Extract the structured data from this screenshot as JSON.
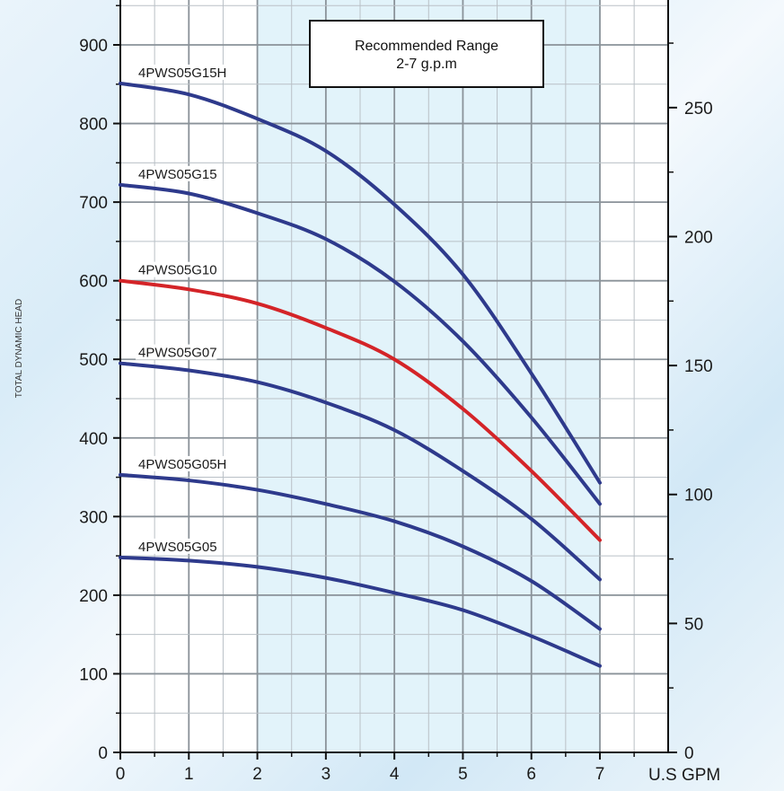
{
  "chart_data": {
    "type": "line",
    "title": "",
    "xlabel": "U.S GPM",
    "ylabel": "TOTAL DYNAMIC HEAD",
    "x_ticks": [
      "0",
      "1",
      "2",
      "3",
      "4",
      "5",
      "6",
      "7"
    ],
    "y_ticks_left": [
      "0",
      "100",
      "200",
      "300",
      "400",
      "500",
      "600",
      "700",
      "800",
      "900"
    ],
    "y_ticks_right": [
      "0",
      "50",
      "100",
      "150",
      "200",
      "250"
    ],
    "xlim": [
      0,
      8
    ],
    "ylim_left": [
      0,
      950
    ],
    "right_axis_factor": 0.3048,
    "recommended_range": [
      2,
      7
    ],
    "annotation": [
      "Recommended Range",
      "2-7 g.p.m"
    ],
    "grid": true,
    "series": [
      {
        "name": "4PWS05G15H",
        "color": "#2e3a8c",
        "x": [
          0,
          1,
          2,
          3,
          4,
          5,
          6,
          7
        ],
        "y": [
          851,
          837,
          806,
          765,
          697,
          608,
          482,
          343
        ]
      },
      {
        "name": "4PWS05G15",
        "color": "#2e3a8c",
        "x": [
          0,
          1,
          2,
          3,
          4,
          5,
          6,
          7
        ],
        "y": [
          722,
          711,
          686,
          653,
          599,
          523,
          426,
          316
        ]
      },
      {
        "name": "4PWS05G10",
        "color": "#d42428",
        "x": [
          0,
          1,
          2,
          3,
          4,
          5,
          6,
          7
        ],
        "y": [
          600,
          589,
          571,
          540,
          500,
          437,
          358,
          270
        ]
      },
      {
        "name": "4PWS05G07",
        "color": "#2e3a8c",
        "x": [
          0,
          1,
          2,
          3,
          4,
          5,
          6,
          7
        ],
        "y": [
          495,
          486,
          471,
          445,
          410,
          358,
          297,
          220
        ]
      },
      {
        "name": "4PWS05G05H",
        "color": "#2e3a8c",
        "x": [
          0,
          1,
          2,
          3,
          4,
          5,
          6,
          7
        ],
        "y": [
          353,
          346,
          334,
          316,
          294,
          262,
          218,
          157
        ]
      },
      {
        "name": "4PWS05G05",
        "color": "#2e3a8c",
        "x": [
          0,
          1,
          2,
          3,
          4,
          5,
          6,
          7
        ],
        "y": [
          248,
          244,
          236,
          222,
          203,
          181,
          148,
          110
        ]
      }
    ]
  }
}
